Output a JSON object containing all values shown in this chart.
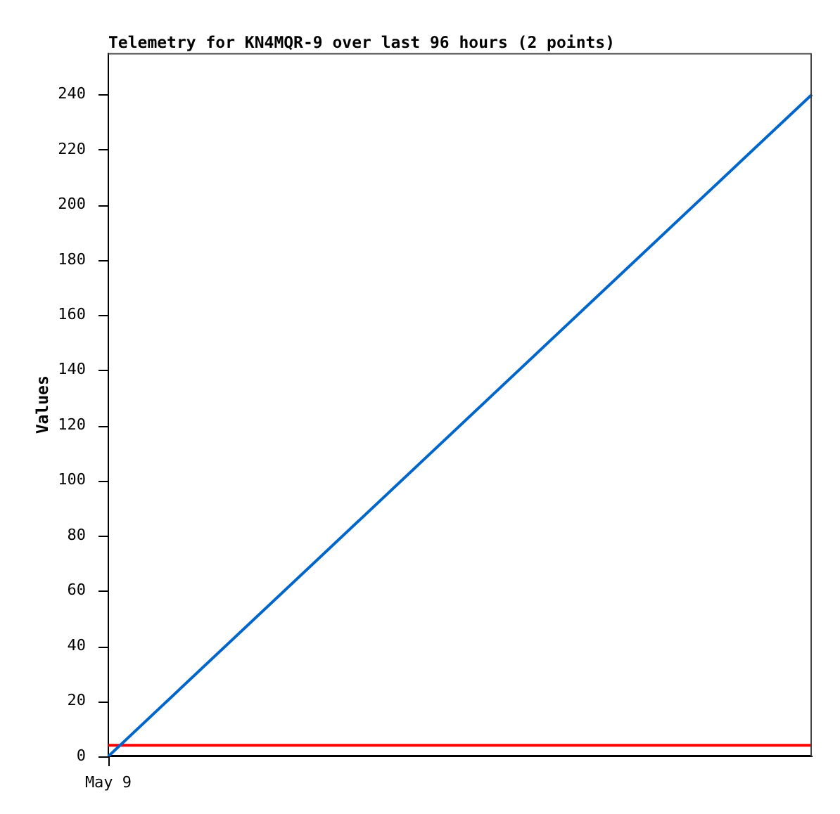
{
  "chart_data": {
    "type": "line",
    "title": "Telemetry for KN4MQR-9 over last 96 hours (2 points)",
    "ylabel": "Values",
    "categories": [
      null,
      null
    ],
    "annotations": [
      "May 9"
    ],
    "ylim": [
      0,
      255
    ],
    "yticks": [
      0,
      20,
      40,
      60,
      80,
      100,
      120,
      140,
      160,
      180,
      200,
      220,
      240
    ],
    "series": [
      {
        "color": "#0066cc",
        "values": [
          0,
          240
        ]
      },
      {
        "color": "#ff0000",
        "values": [
          4,
          4
        ]
      },
      {
        "color": "#000000",
        "values": [
          0,
          0
        ]
      }
    ]
  }
}
